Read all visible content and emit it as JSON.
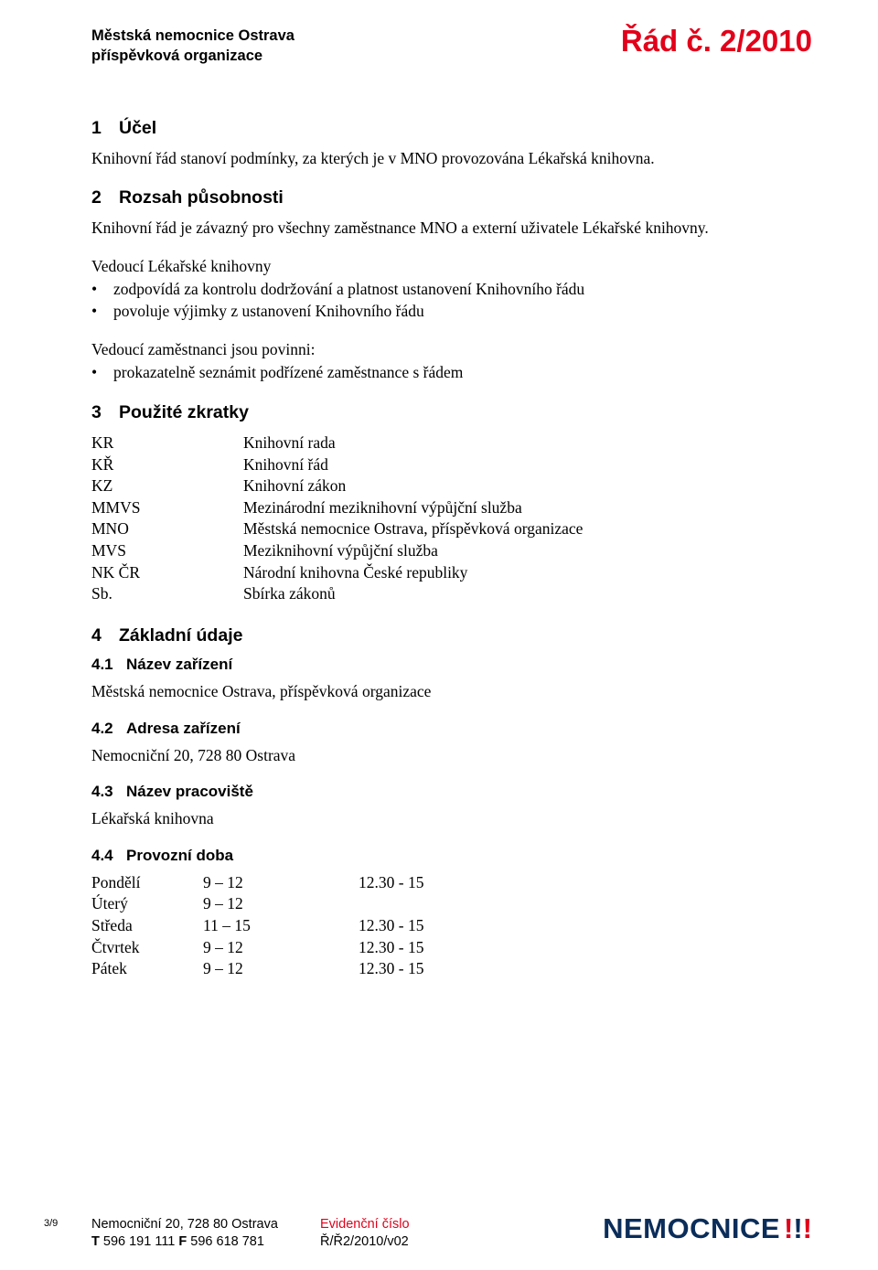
{
  "header": {
    "org_line1": "Městská nemocnice Ostrava",
    "org_line2": "příspěvková organizace",
    "doc_code": "Řád č. 2/2010"
  },
  "sections": {
    "s1": {
      "num": "1",
      "title": "Účel",
      "text": "Knihovní řád stanoví podmínky, za kterých je v MNO provozována Lékařská knihovna."
    },
    "s2": {
      "num": "2",
      "title": "Rozsah působnosti",
      "text": "Knihovní řád je závazný pro všechny zaměstnance MNO a externí uživatele Lékařské knihovny.",
      "lead1": "Vedoucí Lékařské knihovny",
      "bul1a": "zodpovídá za kontrolu dodržování a platnost ustanovení Knihovního řádu",
      "bul1b": "povoluje výjimky z ustanovení Knihovního řádu",
      "lead2": "Vedoucí zaměstnanci jsou povinni:",
      "bul2a": "prokazatelně seznámit podřízené zaměstnance s řádem"
    },
    "s3": {
      "num": "3",
      "title": "Použité zkratky",
      "rows": [
        {
          "k": "KR",
          "v": "Knihovní rada"
        },
        {
          "k": "KŘ",
          "v": "Knihovní řád"
        },
        {
          "k": "KZ",
          "v": "Knihovní zákon"
        },
        {
          "k": "MMVS",
          "v": "Mezinárodní meziknihovní výpůjční služba"
        },
        {
          "k": "MNO",
          "v": "Městská nemocnice Ostrava, příspěvková organizace"
        },
        {
          "k": "MVS",
          "v": "Meziknihovní výpůjční služba"
        },
        {
          "k": "NK ČR",
          "v": "Národní knihovna České republiky"
        },
        {
          "k": "Sb.",
          "v": "Sbírka zákonů"
        }
      ]
    },
    "s4": {
      "num": "4",
      "title": "Základní údaje",
      "sub1": {
        "num": "4.1",
        "title": "Název zařízení",
        "text": "Městská nemocnice Ostrava, příspěvková organizace"
      },
      "sub2": {
        "num": "4.2",
        "title": "Adresa zařízení",
        "text": "Nemocniční 20, 728 80  Ostrava"
      },
      "sub3": {
        "num": "4.3",
        "title": "Název pracoviště",
        "text": "Lékařská knihovna"
      },
      "sub4": {
        "num": "4.4",
        "title": "Provozní doba",
        "rows": [
          {
            "day": "Pondělí",
            "t1": "9 – 12",
            "t2": "12.30 - 15"
          },
          {
            "day": "Úterý",
            "t1": "9 – 12",
            "t2": ""
          },
          {
            "day": "Středa",
            "t1": "11 – 15",
            "t2": "12.30 - 15"
          },
          {
            "day": "Čtvrtek",
            "t1": "9 – 12",
            "t2": "12.30 - 15"
          },
          {
            "day": "Pátek",
            "t1": "9 – 12",
            "t2": "12.30 - 15"
          }
        ]
      }
    }
  },
  "footer": {
    "page": "3/9",
    "addr": "Nemocniční 20, 728 80 Ostrava",
    "t_label": "T",
    "t_num": "596 191 111",
    "f_label": "F",
    "f_num": "596 618 781",
    "evid_label": "Evidenční číslo",
    "evid_value": "Ř/Ř2/2010/v02",
    "logo_text": "NEMOCNICE",
    "bang_colors": [
      "#e2001a",
      "#0a2d5a",
      "#e2001a"
    ]
  }
}
